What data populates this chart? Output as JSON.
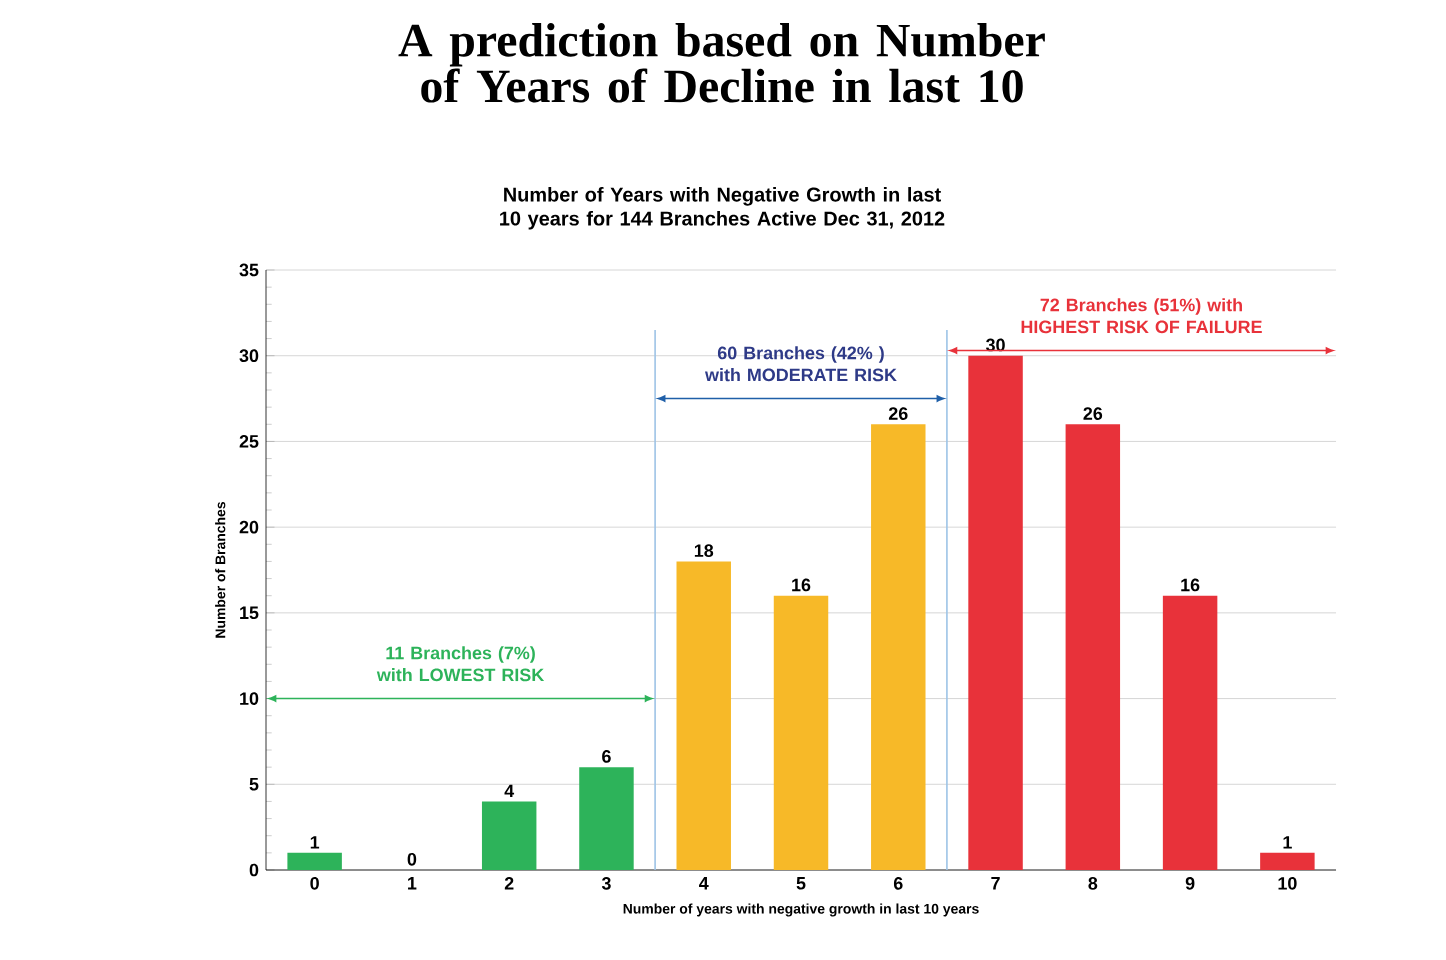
{
  "chart_data": {
    "type": "bar",
    "title": "A prediction based on Number of Years of Decline in last 10",
    "subtitle": "Number of Years with Negative Growth in last 10 years for 144 Branches  Active Dec 31, 2012",
    "xlabel": "Number of years with negative growth in last 10 years",
    "ylabel": "Number of Branches",
    "categories": [
      "0",
      "1",
      "2",
      "3",
      "4",
      "5",
      "6",
      "7",
      "8",
      "9",
      "10"
    ],
    "values": [
      1,
      0,
      4,
      6,
      18,
      16,
      26,
      30,
      26,
      16,
      1
    ],
    "colors": [
      "#2db35a",
      "#2db35a",
      "#2db35a",
      "#2db35a",
      "#f7b928",
      "#f7b928",
      "#f7b928",
      "#e8323a",
      "#e8323a",
      "#e8323a",
      "#e8323a"
    ],
    "ylim": [
      0,
      35
    ],
    "yticks": [
      0,
      5,
      10,
      15,
      20,
      25,
      30,
      35
    ],
    "grid": "y",
    "data_labels": true,
    "annotations": [
      "11 Branches (7%) with LOWEST RISK",
      "60 Branches (42% ) with MODERATE RISK",
      "72 Branches (51%) with HIGHEST RISK OF FAILURE"
    ]
  }
}
